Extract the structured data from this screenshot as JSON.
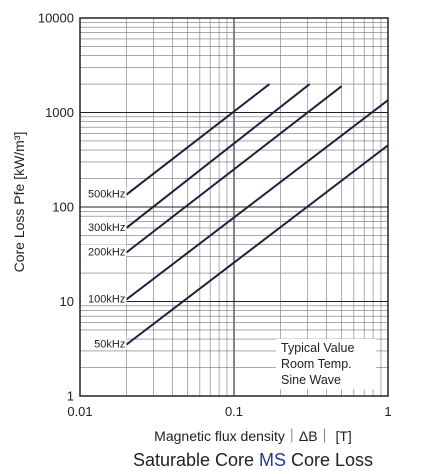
{
  "chart_data": {
    "type": "line",
    "title_prefix": "Saturable Core ",
    "title_accent": "MS",
    "title_suffix": " Core Loss",
    "xlabel": "Magnetic flux density｜ΔB｜ [T]",
    "ylabel": "Core Loss Pfe [kW/m³]",
    "xscale": "log",
    "yscale": "log",
    "xlim": [
      0.01,
      1
    ],
    "ylim": [
      1,
      10000
    ],
    "x_tick_labels": [
      "0.01",
      "0.1",
      "1"
    ],
    "y_tick_labels": [
      "1",
      "10",
      "100",
      "1000",
      "10000"
    ],
    "grid": true,
    "notes": [
      "Typical Value",
      "Room Temp.",
      "Sine Wave"
    ],
    "series": [
      {
        "name": "500kHz",
        "x": [
          0.02,
          0.17
        ],
        "y": [
          135,
          2000
        ]
      },
      {
        "name": "300kHz",
        "x": [
          0.02,
          0.31
        ],
        "y": [
          60,
          2000
        ]
      },
      {
        "name": "200kHz",
        "x": [
          0.02,
          0.5
        ],
        "y": [
          33,
          1900
        ]
      },
      {
        "name": "100kHz",
        "x": [
          0.02,
          1.0
        ],
        "y": [
          10.5,
          1350
        ]
      },
      {
        "name": "50kHz",
        "x": [
          0.02,
          1.0
        ],
        "y": [
          3.5,
          450
        ]
      }
    ]
  },
  "colors": {
    "line": "#1c2340",
    "grid": "#777777",
    "frame": "#222222",
    "accent": "#1f3a93"
  }
}
